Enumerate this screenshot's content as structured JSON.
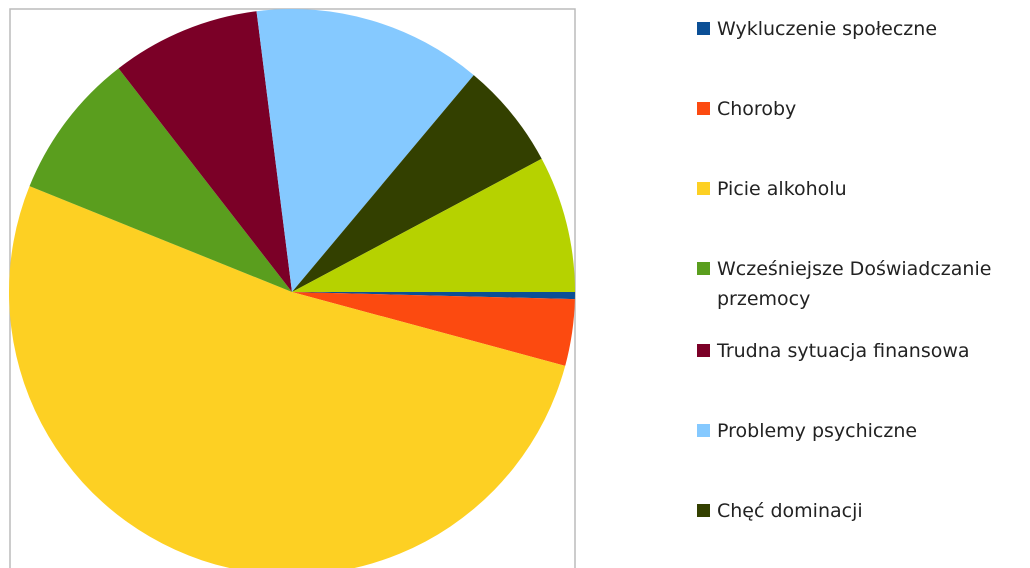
{
  "chart_data": {
    "type": "pie",
    "categories": [
      "Wykluczenie społeczne",
      "Choroby",
      "Picie alkoholu",
      "Wcześniejsze Doświadczanie przemocy",
      "Trudna sytuacja finansowa",
      "Problemy psychiczne",
      "Chęć dominacji",
      null
    ],
    "values": [
      0.4,
      3.8,
      51.9,
      8.4,
      8.5,
      13.1,
      6.1,
      7.8
    ],
    "colors": [
      "#0b4f96",
      "#fc4a10",
      "#fdd023",
      "#5a9e1e",
      "#7b0027",
      "#85c9ff",
      "#334000",
      "#b6d200"
    ]
  }
}
